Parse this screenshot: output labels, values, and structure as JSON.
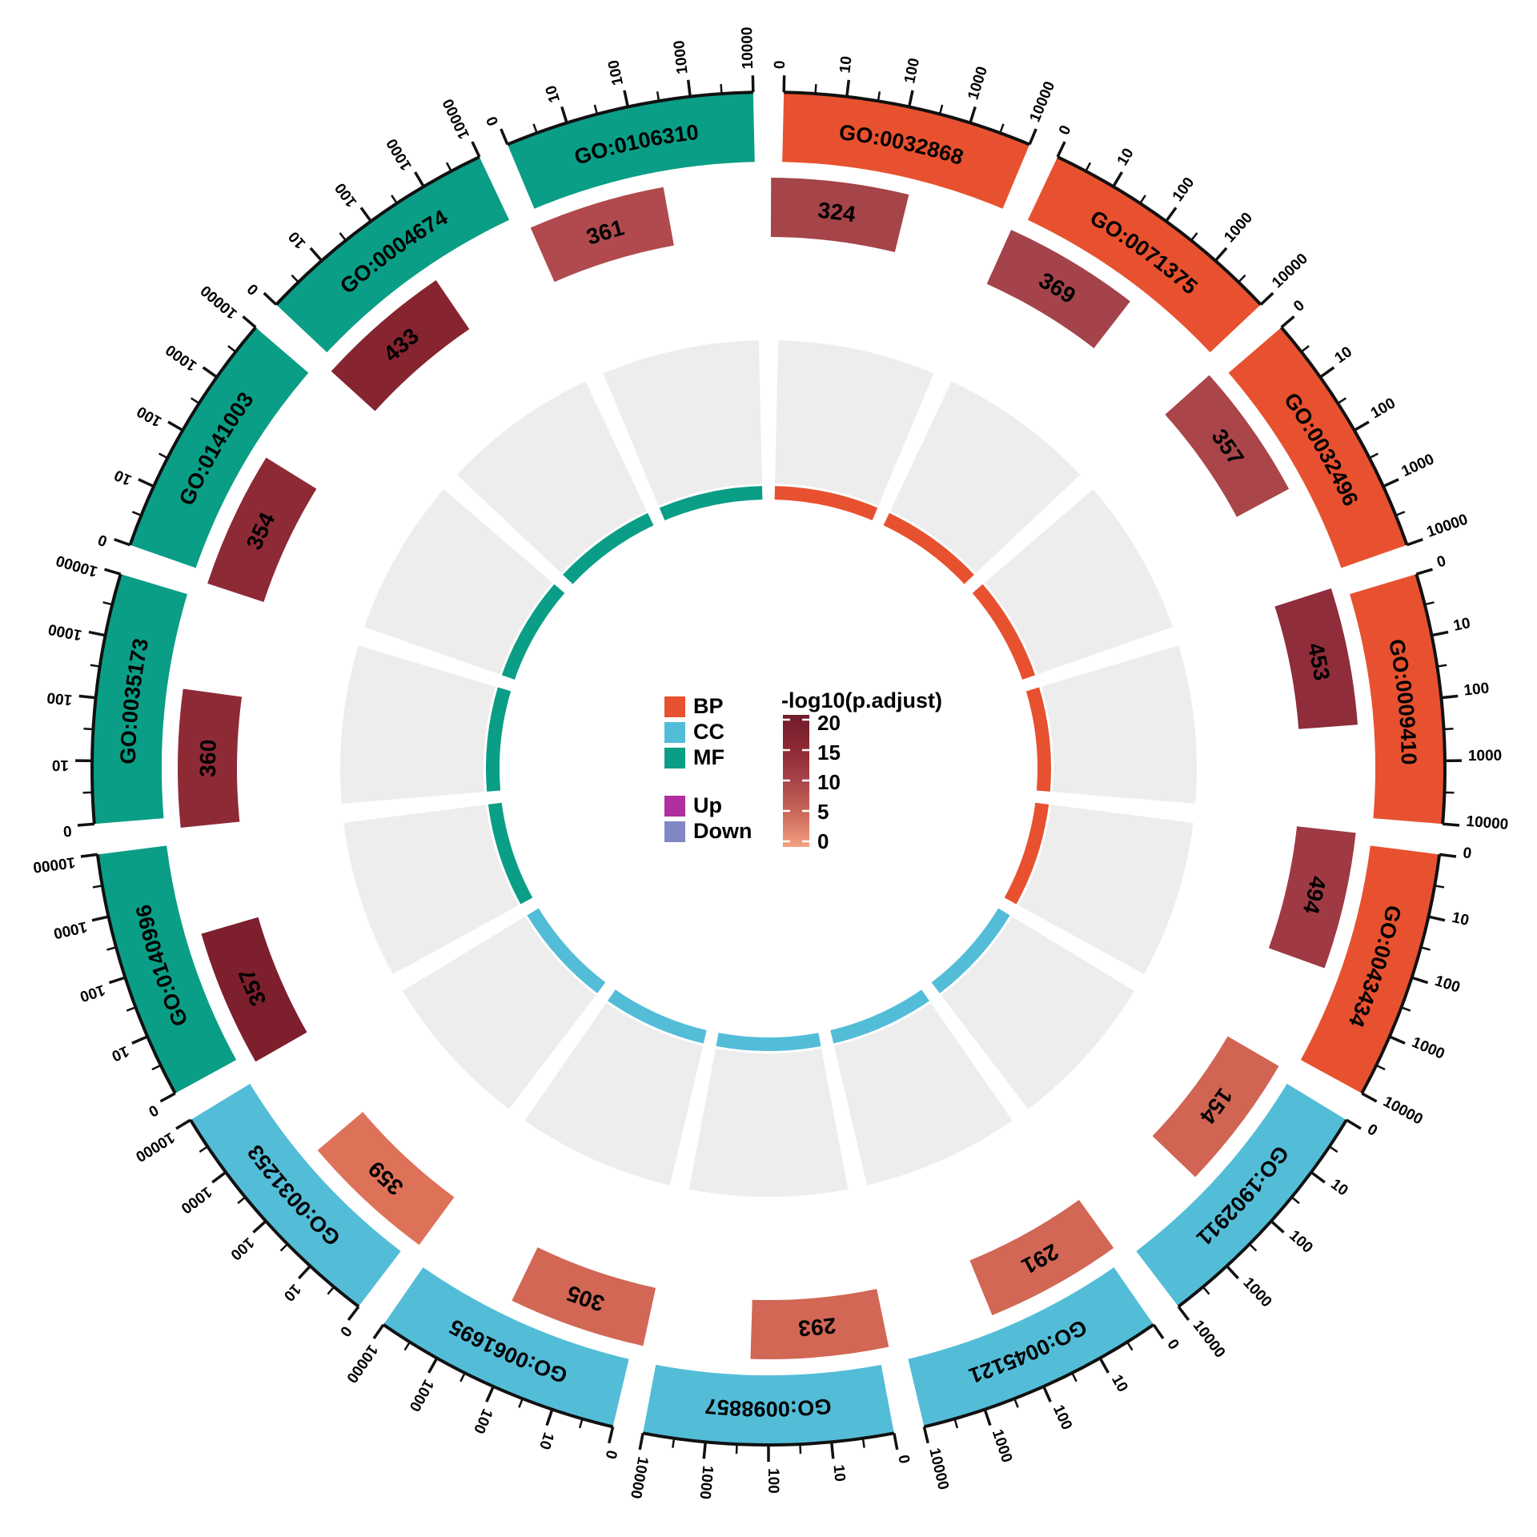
{
  "figure": {
    "background": "#ffffff",
    "legend": {
      "categories": [
        {
          "label": "BP",
          "color": "#E8512F"
        },
        {
          "label": "CC",
          "color": "#53BDD8"
        },
        {
          "label": "MF",
          "color": "#0A9E86"
        }
      ],
      "direction": [
        {
          "label": "Up",
          "color": "#B02E9D"
        },
        {
          "label": "Down",
          "color": "#8187C3"
        }
      ],
      "colorbar": {
        "title": "-log10(p.adjust)",
        "tick_labels": [
          "20",
          "15",
          "10",
          "5",
          "0"
        ],
        "gradient_stops": [
          "#701C2B",
          "#8C2834",
          "#A84449",
          "#CB6A5B",
          "#F4A181"
        ]
      }
    }
  },
  "chart_data": {
    "type": "bar",
    "layout": "circular-go-enrichment",
    "title": "",
    "axis_scale": "log10",
    "axis_range": [
      0,
      10000
    ],
    "axis_tick_labels": [
      "0",
      "10",
      "100",
      "1000",
      "10000"
    ],
    "legend_position": "center",
    "grid": false,
    "gray_ring_color": "#EDEDED",
    "category_colors": {
      "BP": "#E8512F",
      "CC": "#53BDD8",
      "MF": "#0A9E86"
    },
    "items": [
      {
        "go_id": "GO:0032868",
        "ontology": "BP",
        "count": "324",
        "block_color": "#A54449",
        "neg_log10_padj_approx": 12
      },
      {
        "go_id": "GO:0071375",
        "ontology": "BP",
        "count": "369",
        "block_color": "#A4434B",
        "neg_log10_padj_approx": 12
      },
      {
        "go_id": "GO:0032496",
        "ontology": "BP",
        "count": "357",
        "block_color": "#AA4549",
        "neg_log10_padj_approx": 11
      },
      {
        "go_id": "GO:0009410",
        "ontology": "BP",
        "count": "453",
        "block_color": "#8F2D3B",
        "neg_log10_padj_approx": 15
      },
      {
        "go_id": "GO:0043434",
        "ontology": "BP",
        "count": "494",
        "block_color": "#9F3A44",
        "neg_log10_padj_approx": 13
      },
      {
        "go_id": "GO:1902911",
        "ontology": "CC",
        "count": "154",
        "block_color": "#D16453",
        "neg_log10_padj_approx": 6
      },
      {
        "go_id": "GO:0045121",
        "ontology": "CC",
        "count": "291",
        "block_color": "#D26755",
        "neg_log10_padj_approx": 6
      },
      {
        "go_id": "GO:0098857",
        "ontology": "CC",
        "count": "293",
        "block_color": "#D26755",
        "neg_log10_padj_approx": 6
      },
      {
        "go_id": "GO:0061695",
        "ontology": "CC",
        "count": "305",
        "block_color": "#D26755",
        "neg_log10_padj_approx": 6
      },
      {
        "go_id": "GO:0031253",
        "ontology": "CC",
        "count": "359",
        "block_color": "#DD7258",
        "neg_log10_padj_approx": 5
      },
      {
        "go_id": "GO:0140996",
        "ontology": "MF",
        "count": "357",
        "block_color": "#7D1F2D",
        "neg_log10_padj_approx": 18
      },
      {
        "go_id": "GO:0035173",
        "ontology": "MF",
        "count": "360",
        "block_color": "#8E2A36",
        "neg_log10_padj_approx": 15
      },
      {
        "go_id": "GO:0141003",
        "ontology": "MF",
        "count": "354",
        "block_color": "#8E2A36",
        "neg_log10_padj_approx": 15
      },
      {
        "go_id": "GO:0004674",
        "ontology": "MF",
        "count": "433",
        "block_color": "#86242F",
        "neg_log10_padj_approx": 17
      },
      {
        "go_id": "GO:0106310",
        "ontology": "MF",
        "count": "361",
        "block_color": "#B04A4E",
        "neg_log10_padj_approx": 10
      }
    ]
  }
}
